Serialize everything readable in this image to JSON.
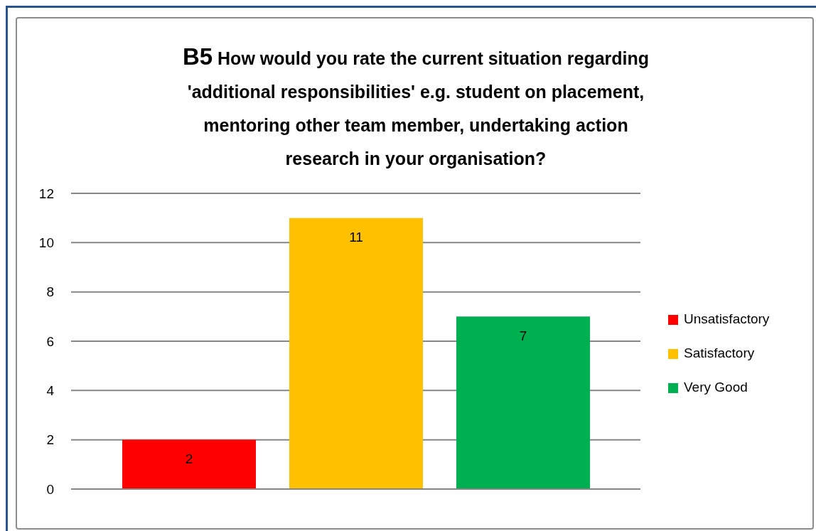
{
  "chart_data": {
    "type": "bar",
    "title": "B5 How would you rate the current situation regarding 'additional responsibilities' e.g. student on placement, mentoring other team member, undertaking action research in your organisation?",
    "categories": [
      null
    ],
    "series": [
      {
        "name": "Unsatisfactory",
        "color": "#ff0000",
        "values": [
          2
        ]
      },
      {
        "name": "Satisfactory",
        "color": "#ffc000",
        "values": [
          11
        ]
      },
      {
        "name": "Very Good",
        "color": "#00b050",
        "values": [
          7
        ]
      }
    ],
    "ylim": [
      0,
      12
    ],
    "yticks": [
      0,
      2,
      4,
      6,
      8,
      10,
      12
    ],
    "grid": "y",
    "legend": "right",
    "data_labels": true,
    "tick_labels": "y"
  }
}
